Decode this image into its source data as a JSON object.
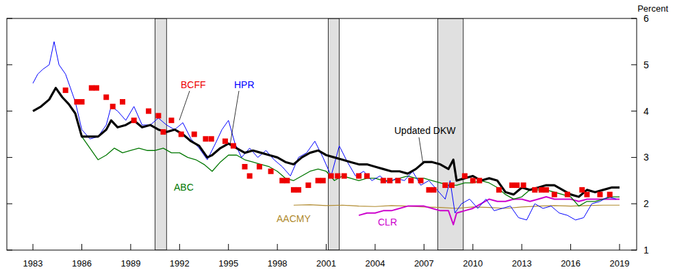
{
  "chart_data": {
    "type": "line",
    "y_label": "Percent",
    "xlim": [
      1981.4,
      2020.05
    ],
    "ylim": [
      1,
      6
    ],
    "xticks": [
      1983,
      1986,
      1989,
      1992,
      1995,
      1998,
      2001,
      2004,
      2007,
      2010,
      2013,
      2016,
      2019
    ],
    "yticks": [
      1,
      2,
      3,
      4,
      5,
      6
    ],
    "recessions": [
      [
        1990.49,
        1991.2
      ],
      [
        2001.12,
        2001.8
      ],
      [
        2007.85,
        2009.41
      ]
    ],
    "series": [
      {
        "name": "Updated DKW",
        "color": "#000000",
        "type": "line",
        "line_style": "solid",
        "x": [
          1983.0,
          1983.5,
          1984.0,
          1984.4,
          1984.8,
          1985.2,
          1985.6,
          1986.0,
          1986.5,
          1987.0,
          1987.5,
          1987.8,
          1988.2,
          1988.7,
          1989.2,
          1989.7,
          1990.2,
          1990.7,
          1991.2,
          1991.7,
          1992.2,
          1992.7,
          1993.2,
          1993.7,
          1994.0,
          1994.5,
          1995.0,
          1995.5,
          1996.0,
          1996.5,
          1997.0,
          1997.5,
          1998.0,
          1998.5,
          1999.0,
          1999.5,
          2000.0,
          2000.5,
          2001.0,
          2001.5,
          2002.0,
          2002.5,
          2003.0,
          2003.5,
          2004.0,
          2004.5,
          2005.0,
          2005.5,
          2006.0,
          2006.5,
          2007.0,
          2007.5,
          2008.0,
          2008.5,
          2008.8,
          2009.0,
          2009.5,
          2010.0,
          2010.5,
          2011.0,
          2011.5,
          2012.0,
          2012.5,
          2013.0,
          2013.5,
          2014.0,
          2014.5,
          2015.0,
          2015.5,
          2016.0,
          2016.5,
          2017.0,
          2017.5,
          2018.0,
          2018.5,
          2019.0
        ],
        "values": [
          4.0,
          4.1,
          4.25,
          4.5,
          4.3,
          4.15,
          3.95,
          3.45,
          3.45,
          3.45,
          3.6,
          3.8,
          3.65,
          3.7,
          3.8,
          3.65,
          3.7,
          3.6,
          3.55,
          3.6,
          3.5,
          3.35,
          3.25,
          3.0,
          3.05,
          3.2,
          3.3,
          3.2,
          3.1,
          3.15,
          3.1,
          3.05,
          3.0,
          2.9,
          2.85,
          3.0,
          3.1,
          3.15,
          3.05,
          3.0,
          2.95,
          2.9,
          2.85,
          2.85,
          2.8,
          2.75,
          2.7,
          2.7,
          2.65,
          2.75,
          2.9,
          2.9,
          2.85,
          2.75,
          2.95,
          2.5,
          2.55,
          2.6,
          2.5,
          2.55,
          2.5,
          2.25,
          2.2,
          2.35,
          2.3,
          2.35,
          2.4,
          2.4,
          2.3,
          2.2,
          2.15,
          2.3,
          2.25,
          2.3,
          2.35,
          2.35
        ]
      },
      {
        "name": "HPR",
        "color": "#0000ff",
        "type": "line",
        "line_style": "solid",
        "x": [
          1983.0,
          1983.3,
          1983.6,
          1984.0,
          1984.3,
          1984.6,
          1985.0,
          1985.3,
          1985.6,
          1986.0,
          1986.5,
          1987.0,
          1987.5,
          1987.8,
          1988.2,
          1988.7,
          1989.2,
          1989.7,
          1990.2,
          1990.7,
          1991.2,
          1991.7,
          1992.2,
          1992.7,
          1993.2,
          1993.7,
          1994.2,
          1994.6,
          1995.0,
          1995.4,
          1995.8,
          1996.3,
          1996.8,
          1997.3,
          1997.8,
          1998.3,
          1998.8,
          1999.3,
          1999.8,
          2000.3,
          2000.8,
          2001.3,
          2001.8,
          2002.3,
          2002.8,
          2003.3,
          2003.8,
          2004.3,
          2004.8,
          2005.3,
          2005.8,
          2006.3,
          2006.8,
          2007.3,
          2007.8,
          2008.3,
          2008.6,
          2008.9,
          2009.3,
          2009.8,
          2010.3,
          2010.8,
          2011.3,
          2011.8,
          2012.3,
          2012.8,
          2013.3,
          2013.8,
          2014.3,
          2014.8,
          2015.3,
          2015.8,
          2016.3,
          2016.8,
          2017.3,
          2017.8,
          2018.3,
          2018.8
        ],
        "values": [
          4.6,
          4.8,
          4.9,
          5.0,
          5.5,
          5.0,
          4.8,
          4.5,
          4.2,
          3.6,
          3.4,
          3.45,
          3.7,
          4.1,
          4.0,
          3.8,
          4.1,
          3.7,
          3.7,
          3.85,
          3.7,
          3.6,
          3.75,
          3.4,
          3.2,
          2.95,
          3.3,
          3.6,
          3.8,
          3.3,
          3.0,
          3.2,
          3.0,
          3.15,
          2.95,
          2.8,
          2.6,
          3.0,
          3.1,
          3.35,
          3.0,
          2.6,
          3.25,
          2.9,
          2.6,
          2.7,
          2.5,
          2.6,
          2.45,
          2.55,
          2.5,
          2.7,
          2.4,
          2.5,
          2.3,
          2.1,
          2.5,
          1.8,
          2.0,
          2.1,
          1.9,
          2.1,
          1.85,
          1.9,
          1.95,
          1.7,
          1.65,
          2.0,
          1.9,
          1.95,
          1.8,
          1.75,
          1.65,
          1.7,
          2.0,
          2.05,
          2.15,
          2.1
        ]
      },
      {
        "name": "ABC",
        "color": "#007700",
        "type": "line",
        "line_style": "solid",
        "x": [
          1986.0,
          1986.5,
          1987.0,
          1987.5,
          1988.0,
          1988.5,
          1989.0,
          1989.5,
          1990.0,
          1990.5,
          1991.0,
          1991.5,
          1992.0,
          1992.5,
          1993.0,
          1993.5,
          1994.0,
          1994.5,
          1995.0,
          1995.5,
          1996.0,
          1996.5,
          1997.0,
          1997.5,
          1998.0,
          1998.5,
          1999.0,
          1999.5,
          2000.0,
          2000.5,
          2001.0,
          2001.5,
          2002.0,
          2002.5,
          2003.0,
          2003.5,
          2004.0,
          2004.5,
          2005.0,
          2005.5,
          2006.0,
          2006.5,
          2007.0,
          2007.5,
          2008.0,
          2008.5,
          2009.0,
          2009.5,
          2010.0,
          2010.5,
          2011.0,
          2011.5,
          2012.0,
          2012.5,
          2013.0,
          2013.5,
          2014.0,
          2014.5,
          2015.0,
          2015.5,
          2016.0,
          2016.5,
          2017.0,
          2017.5,
          2018.0,
          2018.5,
          2019.0
        ],
        "values": [
          3.45,
          3.2,
          2.95,
          3.05,
          3.2,
          3.1,
          3.15,
          3.2,
          3.15,
          3.15,
          3.2,
          3.1,
          3.1,
          3.0,
          2.95,
          2.85,
          2.7,
          2.9,
          3.05,
          3.05,
          2.95,
          2.9,
          2.85,
          2.8,
          2.7,
          2.55,
          2.5,
          2.6,
          2.7,
          2.75,
          2.7,
          2.5,
          2.6,
          2.55,
          2.5,
          2.55,
          2.55,
          2.5,
          2.5,
          2.55,
          2.6,
          2.55,
          2.55,
          2.5,
          2.45,
          2.4,
          2.4,
          2.45,
          2.45,
          2.5,
          2.45,
          2.35,
          2.2,
          2.1,
          2.15,
          2.3,
          2.3,
          2.3,
          2.25,
          2.2,
          2.15,
          1.95,
          2.05,
          2.05,
          2.1,
          2.15,
          2.15
        ]
      },
      {
        "name": "AACMY",
        "color": "#b08a2e",
        "type": "line",
        "line_style": "solid",
        "x": [
          1999,
          2000,
          2001,
          2002,
          2003,
          2004,
          2005,
          2006,
          2007,
          2008,
          2009,
          2010,
          2011,
          2012,
          2013,
          2014,
          2015,
          2016,
          2017,
          2018,
          2019
        ],
        "values": [
          1.97,
          1.98,
          1.96,
          1.97,
          1.95,
          1.94,
          1.96,
          1.95,
          1.93,
          1.92,
          1.9,
          1.93,
          1.92,
          1.9,
          1.93,
          1.95,
          1.96,
          1.95,
          1.96,
          1.97,
          1.97
        ]
      },
      {
        "name": "CLR",
        "color": "#cc00cc",
        "type": "line",
        "line_style": "solid",
        "x": [
          2003.0,
          2003.5,
          2004.0,
          2004.5,
          2005.0,
          2005.5,
          2006.0,
          2006.5,
          2007.0,
          2007.5,
          2008.0,
          2008.5,
          2008.8,
          2009.0,
          2009.5,
          2010.0,
          2010.5,
          2011.0,
          2011.5,
          2012.0,
          2012.5,
          2013.0,
          2013.5,
          2014.0,
          2014.5,
          2015.0,
          2015.5,
          2016.0,
          2016.5,
          2017.0,
          2017.5,
          2018.0,
          2018.5,
          2019.0
        ],
        "values": [
          1.75,
          1.8,
          1.8,
          1.85,
          1.85,
          1.9,
          1.95,
          1.95,
          1.95,
          1.9,
          1.85,
          1.85,
          1.55,
          1.8,
          1.85,
          1.9,
          2.0,
          2.1,
          2.05,
          2.05,
          2.1,
          2.1,
          2.05,
          2.1,
          2.15,
          2.1,
          2.1,
          2.1,
          2.05,
          2.1,
          2.1,
          2.1,
          2.1,
          2.1
        ]
      },
      {
        "name": "BCFF",
        "color": "#ee0000",
        "type": "scatter",
        "marker": "square",
        "x": [
          1985.0,
          1985.7,
          1986.0,
          1986.6,
          1986.9,
          1987.5,
          1987.9,
          1988.5,
          1989.2,
          1990.1,
          1990.7,
          1991.0,
          1991.5,
          1992.1,
          1992.9,
          1993.6,
          1993.95,
          1994.8,
          1995.3,
          1996.0,
          1996.3,
          1996.9,
          1997.6,
          1998.3,
          1998.6,
          1999.0,
          1999.3,
          1999.9,
          2000.5,
          2000.8,
          2001.3,
          2001.7,
          2002.1,
          2003.0,
          2003.5,
          2004.5,
          2004.9,
          2005.4,
          2006.2,
          2006.8,
          2007.3,
          2007.6,
          2008.3,
          2008.7,
          2009.5,
          2010.0,
          2010.4,
          2011.6,
          2012.4,
          2012.7,
          2013.1,
          2013.8,
          2014.2,
          2014.5,
          2015.0,
          2015.8,
          2016.7,
          2017.0,
          2017.8,
          2018.4
        ],
        "values": [
          4.45,
          4.2,
          4.2,
          4.5,
          4.5,
          4.3,
          4.1,
          4.2,
          3.8,
          4.0,
          3.9,
          3.55,
          3.8,
          3.5,
          3.5,
          3.4,
          3.4,
          3.35,
          3.25,
          2.8,
          2.6,
          2.8,
          2.7,
          2.5,
          2.5,
          2.3,
          2.3,
          2.4,
          2.5,
          2.5,
          2.6,
          2.6,
          2.6,
          2.6,
          2.6,
          2.5,
          2.5,
          2.5,
          2.5,
          2.5,
          2.3,
          2.3,
          2.4,
          2.4,
          2.6,
          2.5,
          2.5,
          2.3,
          2.4,
          2.4,
          2.4,
          2.3,
          2.3,
          2.3,
          2.2,
          2.2,
          2.3,
          2.2,
          2.2,
          2.2
        ]
      }
    ]
  }
}
